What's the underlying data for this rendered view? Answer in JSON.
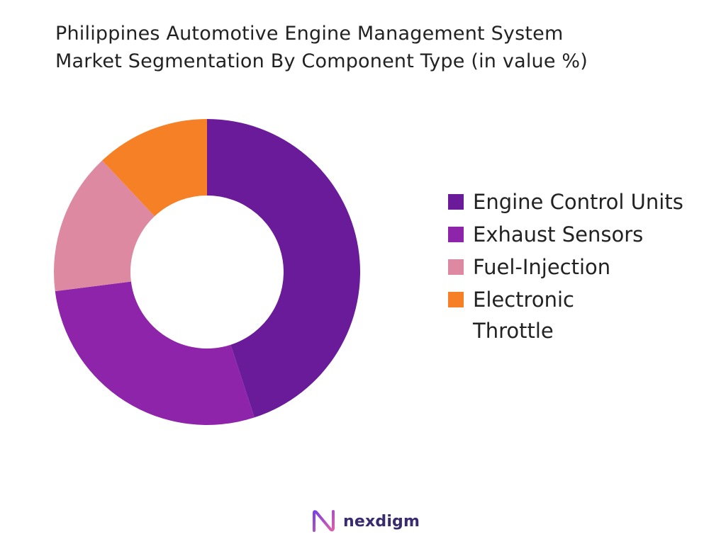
{
  "title_lines": [
    "Philippines Automotive Engine Management System",
    "Market Segmentation By Component Type (in value %)"
  ],
  "chart_data": {
    "type": "pie",
    "variant": "donut",
    "title": "Philippines Automotive Engine Management System Market Segmentation By Component Type (in value %)",
    "unit": "%",
    "categories": [
      "Engine Control Units",
      "Exhaust Sensors",
      "Fuel-Injection",
      "Electronic Throttle"
    ],
    "values": [
      45,
      28,
      15,
      12
    ],
    "colors": [
      "#6a1b9a",
      "#8e24aa",
      "#de89a2",
      "#f58025"
    ],
    "legend": "right",
    "start": "top, clockwise"
  },
  "legend": {
    "items": [
      {
        "label": "Engine Control Units",
        "color": "#6a1b9a"
      },
      {
        "label": "Exhaust Sensors",
        "color": "#8e24aa"
      },
      {
        "label": "Fuel-Injection",
        "color": "#de89a2"
      },
      {
        "label": "Electronic Throttle",
        "color": "#f58025"
      }
    ]
  },
  "logo": {
    "text": "nexdigm",
    "icon": "nexdigm-logo-icon",
    "colors": {
      "text": "#3a2a6e",
      "mark_start": "#7b3fe4",
      "mark_end": "#e05fa8"
    }
  }
}
